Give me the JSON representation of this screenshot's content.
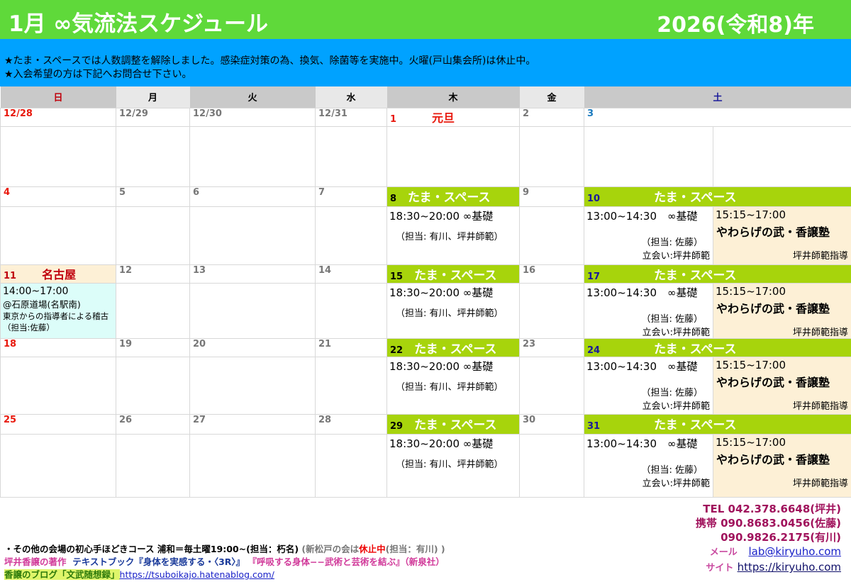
{
  "header": {
    "title": "1月 ∞気流法スケジュール",
    "year": "2026(令和8)年"
  },
  "notice": [
    "★たま・スペースでは人数調整を解除しました。感染症対策の為、換気、除菌等を実施中。火曜(戸山集会所)は休止中。",
    "★入会希望の方は下記へお問合せ下さい。"
  ],
  "weekdays": [
    "日",
    "月",
    "火",
    "水",
    "木",
    "金",
    "土"
  ],
  "weekday_colors": [
    "#c0000c",
    "#000000",
    "#000000",
    "#000000",
    "#000000",
    "#000000",
    "#1a1a9a"
  ],
  "thursday_class": {
    "time": "18:30~20:00 ∞基礎",
    "staff": "（担当: 有川、坪井師範）"
  },
  "saturday_class": {
    "time": "13:00~14:30　∞基礎",
    "staff": "（担当: 佐藤）",
    "witness": "立会い:坪井師範",
    "time2": "15:15~17:00",
    "name2": "やわらげの武・香譲塾",
    "lead2": "坪井師範指導"
  },
  "event_label": "たま・スペース",
  "weeks": [
    {
      "dates": [
        "12/28",
        "12/29",
        "12/30",
        "12/31",
        "1",
        "2",
        "3"
      ],
      "holiday": "元旦",
      "class": false
    },
    {
      "dates": [
        "4",
        "5",
        "6",
        "7",
        "8",
        "9",
        "10"
      ],
      "class": true
    },
    {
      "dates": [
        "11",
        "12",
        "13",
        "14",
        "15",
        "16",
        "17"
      ],
      "class": true,
      "sunday_event": {
        "label": "名古屋",
        "time": "14:00~17:00",
        "place": "@石原道場(名駅南)",
        "desc": "東京からの指導者による稽古",
        "staff": "（担当:佐藤）"
      }
    },
    {
      "dates": [
        "18",
        "19",
        "20",
        "21",
        "22",
        "23",
        "24"
      ],
      "class": true
    },
    {
      "dates": [
        "25",
        "26",
        "27",
        "28",
        "29",
        "30",
        "31"
      ],
      "class": true
    }
  ],
  "footer": {
    "line1": "・その他の会場の初心手ほどきコース  浦和＝毎土曜19:00~(担当：朽名)",
    "line1b": "(新松戸の会は",
    "line1c": "休止中",
    "line1d": "(担当：有川) )",
    "books_label": "坪井香譲の著作",
    "book1": "テキストブック『身体を実感する・〈3R〉』",
    "book2": "『呼吸する身体−−武術と芸術を結ぶ』（新泉社）",
    "blog_label": "香譲のブログ「文武随想録」",
    "blog_url": "https://tsuboikajo.hatenablog.com/"
  },
  "contact": {
    "tel": "TEL 042.378.6648(坪井)",
    "mobile1": "携帯 090.8683.0456(佐藤)",
    "mobile2": "090.9826.2175(有川)",
    "mail_label": "メール",
    "mail": "lab@kiryuho.com",
    "site_label": "サイト",
    "site": "https://kiryuho.com"
  }
}
